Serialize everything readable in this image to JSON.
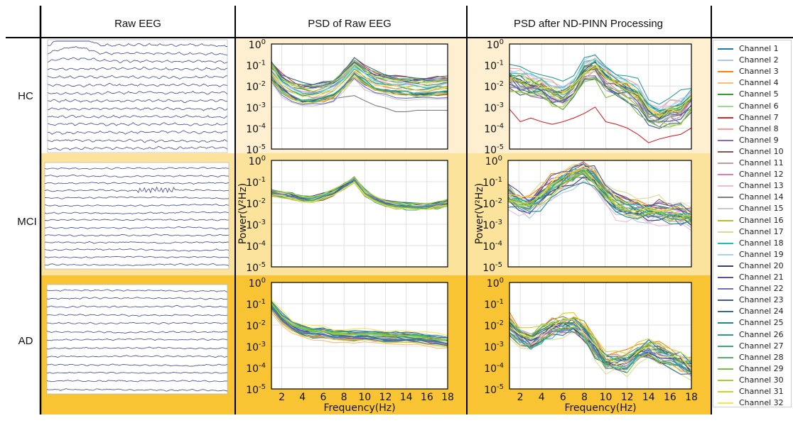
{
  "headers": {
    "raw": "Raw EEG",
    "psd_raw": "PSD of Raw EEG",
    "psd_nd": "PSD after ND-PINN Processing"
  },
  "rows": [
    "HC",
    "MCI",
    "AD"
  ],
  "row_colors": [
    "#FDEFD0",
    "#FBE39B",
    "#F8C433"
  ],
  "trace_color": "#2F3C8C",
  "chart_data": {
    "type": "line",
    "xlabel": "Frequency(Hz)",
    "ylabel": "Power(V²Hz)",
    "xlim": [
      1,
      18
    ],
    "ylim": [
      1e-05,
      1
    ],
    "yscale": "log",
    "grid": true,
    "legend_position": "right",
    "x_ticks": [
      2,
      4,
      6,
      8,
      10,
      12,
      14,
      16,
      18
    ],
    "y_ticks": [
      {
        "base": "10",
        "exp": "0"
      },
      {
        "base": "10",
        "exp": "-1"
      },
      {
        "base": "10",
        "exp": "-2"
      },
      {
        "base": "10",
        "exp": "-3"
      },
      {
        "base": "10",
        "exp": "-4"
      },
      {
        "base": "10",
        "exp": "-5"
      }
    ],
    "channels": [
      {
        "name": "Channel 1",
        "color": "#1f77b4"
      },
      {
        "name": "Channel 2",
        "color": "#aec7e8"
      },
      {
        "name": "Channel 3",
        "color": "#ff7f0e"
      },
      {
        "name": "Channel 4",
        "color": "#ffbb78"
      },
      {
        "name": "Channel 5",
        "color": "#2ca02c"
      },
      {
        "name": "Channel 6",
        "color": "#98df8a"
      },
      {
        "name": "Channel 7",
        "color": "#d62728"
      },
      {
        "name": "Channel 8",
        "color": "#ff9896"
      },
      {
        "name": "Channel 9",
        "color": "#9467bd"
      },
      {
        "name": "Channel 10",
        "color": "#8c564b"
      },
      {
        "name": "Channel 11",
        "color": "#c49c94"
      },
      {
        "name": "Channel 12",
        "color": "#e377c2"
      },
      {
        "name": "Channel 13",
        "color": "#f7b6d2"
      },
      {
        "name": "Channel 14",
        "color": "#7f7f7f"
      },
      {
        "name": "Channel 15",
        "color": "#c7c7c7"
      },
      {
        "name": "Channel 16",
        "color": "#bcbd22"
      },
      {
        "name": "Channel 17",
        "color": "#dbdb8d"
      },
      {
        "name": "Channel 18",
        "color": "#17becf"
      },
      {
        "name": "Channel 19",
        "color": "#9edae5"
      },
      {
        "name": "Channel 20",
        "color": "#393b79"
      },
      {
        "name": "Channel 21",
        "color": "#5254a3"
      },
      {
        "name": "Channel 22",
        "color": "#6b6ecf"
      },
      {
        "name": "Channel 23",
        "color": "#3b5b92"
      },
      {
        "name": "Channel 24",
        "color": "#2f6f8f"
      },
      {
        "name": "Channel 25",
        "color": "#1b8a8a"
      },
      {
        "name": "Channel 26",
        "color": "#2a9d8f"
      },
      {
        "name": "Channel 27",
        "color": "#3aa87a"
      },
      {
        "name": "Channel 28",
        "color": "#52b06a"
      },
      {
        "name": "Channel 29",
        "color": "#7cc040"
      },
      {
        "name": "Channel 30",
        "color": "#a6cf2e"
      },
      {
        "name": "Channel 31",
        "color": "#cfd22a"
      },
      {
        "name": "Channel 32",
        "color": "#ffe24d"
      }
    ],
    "panels": [
      {
        "id": "hc-raw",
        "row": 0,
        "col": 0,
        "show_ylabel": false,
        "show_xlabel": false,
        "show_xticks": false,
        "profile": {
          "x": [
            1,
            2,
            3,
            4,
            5,
            6,
            7,
            8,
            9,
            10,
            11,
            12,
            13,
            14,
            15,
            16,
            17,
            18
          ],
          "y": [
            0.05,
            0.012,
            0.006,
            0.004,
            0.004,
            0.005,
            0.007,
            0.02,
            0.07,
            0.03,
            0.015,
            0.012,
            0.01,
            0.009,
            0.008,
            0.008,
            0.009,
            0.01
          ]
        },
        "spread": 0.55,
        "jitter": 0.08,
        "special": [
          {
            "channel": "Channel 14",
            "y": [
              0.05,
              0.01,
              0.003,
              0.0018,
              0.0018,
              0.0022,
              0.0025,
              0.003,
              0.0035,
              0.002,
              0.0012,
              0.0009,
              0.0006,
              0.0006,
              0.0007,
              0.0007,
              0.0007,
              0.0007
            ]
          }
        ]
      },
      {
        "id": "mci-raw",
        "row": 1,
        "col": 0,
        "show_ylabel": true,
        "show_xlabel": false,
        "show_xticks": false,
        "profile": {
          "x": [
            1,
            2,
            3,
            4,
            5,
            6,
            7,
            8,
            9,
            10,
            11,
            12,
            13,
            14,
            15,
            16,
            17,
            18
          ],
          "y": [
            0.03,
            0.025,
            0.02,
            0.015,
            0.015,
            0.02,
            0.03,
            0.06,
            0.12,
            0.03,
            0.015,
            0.01,
            0.008,
            0.007,
            0.007,
            0.007,
            0.008,
            0.01
          ]
        },
        "spread": 0.22,
        "jitter": 0.06,
        "special": []
      },
      {
        "id": "ad-raw",
        "row": 2,
        "col": 0,
        "show_ylabel": false,
        "show_xlabel": true,
        "show_xticks": true,
        "profile": {
          "x": [
            1,
            2,
            3,
            4,
            5,
            6,
            7,
            8,
            9,
            10,
            11,
            12,
            13,
            14,
            15,
            16,
            17,
            18
          ],
          "y": [
            0.08,
            0.02,
            0.008,
            0.005,
            0.004,
            0.004,
            0.003,
            0.003,
            0.003,
            0.003,
            0.0028,
            0.0025,
            0.0025,
            0.0024,
            0.0022,
            0.002,
            0.0018,
            0.0015
          ]
        },
        "spread": 0.28,
        "jitter": 0.06,
        "special": []
      },
      {
        "id": "hc-nd",
        "row": 0,
        "col": 1,
        "show_ylabel": false,
        "show_xlabel": false,
        "show_xticks": false,
        "profile": {
          "x": [
            1,
            2,
            3,
            4,
            5,
            6,
            7,
            8,
            9,
            10,
            11,
            12,
            13,
            14,
            15,
            16,
            17,
            18
          ],
          "y": [
            0.02,
            0.015,
            0.01,
            0.008,
            0.004,
            0.003,
            0.008,
            0.05,
            0.08,
            0.02,
            0.01,
            0.006,
            0.003,
            0.0005,
            0.0003,
            0.0005,
            0.0006,
            0.002
          ]
        },
        "spread": 0.6,
        "jitter": 0.22,
        "special": [
          {
            "channel": "Channel 7",
            "y": [
              0.0008,
              0.0002,
              0.0003,
              0.0002,
              0.00015,
              0.0002,
              0.0003,
              0.0005,
              0.001,
              0.0002,
              0.00015,
              0.0001,
              5e-05,
              2e-05,
              3e-05,
              4e-05,
              5e-05,
              0.0001
            ]
          }
        ]
      },
      {
        "id": "mci-nd",
        "row": 1,
        "col": 1,
        "show_ylabel": true,
        "show_xlabel": false,
        "show_xticks": false,
        "profile": {
          "x": [
            1,
            2,
            3,
            4,
            5,
            6,
            7,
            8,
            9,
            10,
            11,
            12,
            13,
            14,
            15,
            16,
            17,
            18
          ],
          "y": [
            0.02,
            0.01,
            0.008,
            0.02,
            0.05,
            0.1,
            0.2,
            0.3,
            0.15,
            0.03,
            0.01,
            0.006,
            0.005,
            0.004,
            0.004,
            0.003,
            0.003,
            0.002
          ]
        },
        "spread": 0.5,
        "jitter": 0.22,
        "special": []
      },
      {
        "id": "ad-nd",
        "row": 2,
        "col": 1,
        "show_ylabel": false,
        "show_xlabel": true,
        "show_xticks": true,
        "profile": {
          "x": [
            1,
            2,
            3,
            4,
            5,
            6,
            7,
            8,
            9,
            10,
            11,
            12,
            13,
            14,
            15,
            16,
            17,
            18
          ],
          "y": [
            0.01,
            0.003,
            0.002,
            0.004,
            0.008,
            0.01,
            0.012,
            0.005,
            0.0008,
            0.0002,
            0.0002,
            0.0002,
            0.0005,
            0.0008,
            0.0005,
            0.0003,
            0.0002,
            0.0001
          ]
        },
        "spread": 0.45,
        "jitter": 0.2,
        "special": []
      }
    ]
  }
}
